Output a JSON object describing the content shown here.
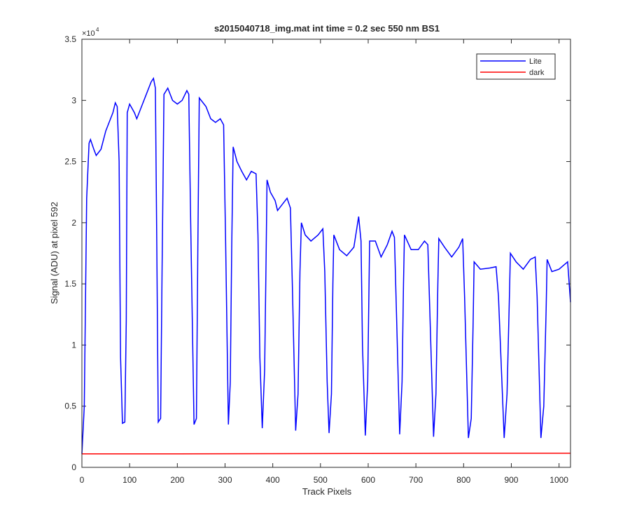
{
  "chart_data": {
    "type": "line",
    "title": "s2015040718_img.mat int time = 0.2 sec  550 nm BS1",
    "x_label": "Track Pixels",
    "y_label": "Signal (ADU) at pixel 592",
    "y_multiplier": "×10",
    "y_multiplier_exponent": "4",
    "xlim": [
      0,
      1024
    ],
    "ylim": [
      0,
      3.5
    ],
    "xticks": [
      0,
      100,
      200,
      300,
      400,
      500,
      600,
      700,
      800,
      900,
      1000
    ],
    "yticks": [
      0,
      0.5,
      1,
      1.5,
      2,
      2.5,
      3,
      3.5
    ],
    "grid": false,
    "legend": "upper right",
    "series": [
      {
        "name": "Lite",
        "color": "#0000ff",
        "x": [
          0,
          5,
          10,
          15,
          18,
          25,
          30,
          40,
          50,
          60,
          65,
          70,
          74,
          78,
          81,
          85,
          90,
          93,
          95,
          100,
          110,
          115,
          125,
          135,
          145,
          150,
          154,
          157,
          160,
          165,
          168,
          172,
          180,
          190,
          200,
          210,
          220,
          224,
          228,
          235,
          240,
          243,
          246,
          260,
          270,
          280,
          290,
          297,
          301,
          307,
          311,
          314,
          317,
          325,
          335,
          345,
          355,
          365,
          369,
          373,
          378,
          383,
          386,
          388,
          395,
          405,
          410,
          420,
          430,
          437,
          441,
          448,
          453,
          457,
          460,
          468,
          480,
          495,
          505,
          509,
          514,
          518,
          523,
          526,
          528,
          540,
          555,
          570,
          580,
          585,
          588,
          594,
          599,
          603,
          615,
          627,
          640,
          650,
          655,
          659,
          666,
          671,
          674,
          676,
          690,
          705,
          718,
          725,
          729,
          737,
          742,
          746,
          748,
          760,
          775,
          790,
          798,
          802,
          810,
          816,
          820,
          822,
          835,
          855,
          868,
          873,
          885,
          891,
          896,
          898,
          910,
          925,
          940,
          950,
          954,
          962,
          968,
          973,
          975,
          985,
          1000,
          1018,
          1024
        ],
        "values": [
          0.11,
          0.5,
          2.2,
          2.65,
          2.68,
          2.6,
          2.55,
          2.6,
          2.75,
          2.85,
          2.9,
          2.98,
          2.95,
          2.5,
          0.9,
          0.36,
          0.37,
          1.2,
          2.9,
          2.97,
          2.9,
          2.85,
          2.95,
          3.05,
          3.15,
          3.18,
          3.1,
          1.8,
          0.37,
          0.4,
          1.6,
          3.05,
          3.1,
          3.0,
          2.97,
          3.0,
          3.08,
          3.05,
          2.0,
          0.35,
          0.4,
          1.8,
          3.02,
          2.95,
          2.85,
          2.82,
          2.85,
          2.8,
          1.9,
          0.35,
          0.7,
          1.8,
          2.62,
          2.5,
          2.42,
          2.35,
          2.42,
          2.4,
          1.9,
          0.9,
          0.32,
          0.8,
          1.7,
          2.35,
          2.25,
          2.18,
          2.1,
          2.15,
          2.2,
          2.12,
          1.5,
          0.3,
          0.6,
          1.6,
          2.0,
          1.9,
          1.85,
          1.9,
          1.95,
          1.6,
          0.7,
          0.28,
          0.6,
          1.5,
          1.9,
          1.78,
          1.73,
          1.8,
          2.05,
          1.85,
          1.0,
          0.26,
          0.7,
          1.85,
          1.85,
          1.72,
          1.82,
          1.93,
          1.88,
          1.3,
          0.27,
          0.7,
          1.5,
          1.9,
          1.78,
          1.78,
          1.85,
          1.82,
          1.3,
          0.25,
          0.6,
          1.5,
          1.87,
          1.8,
          1.72,
          1.8,
          1.87,
          1.4,
          0.24,
          0.4,
          1.2,
          1.68,
          1.62,
          1.63,
          1.64,
          1.4,
          0.24,
          0.6,
          1.4,
          1.75,
          1.68,
          1.62,
          1.7,
          1.72,
          1.4,
          0.24,
          0.5,
          1.3,
          1.7,
          1.6,
          1.62,
          1.68,
          1.35
        ]
      },
      {
        "name": "dark",
        "color": "#ff0000",
        "x": [
          0,
          200,
          400,
          600,
          800,
          1024
        ],
        "values": [
          0.11,
          0.11,
          0.112,
          0.113,
          0.115,
          0.115
        ]
      }
    ]
  }
}
